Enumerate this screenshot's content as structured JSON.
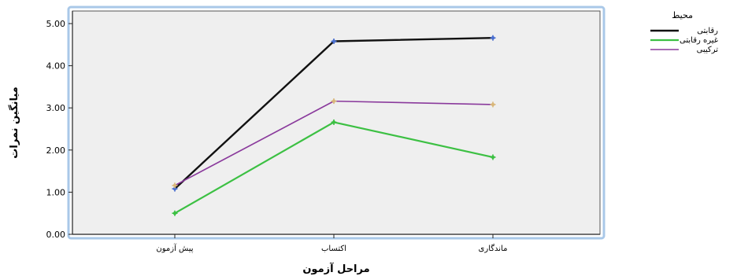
{
  "chart_data": {
    "type": "line",
    "title": "",
    "xlabel": "مراحل آزمون",
    "ylabel": "میانگین نمرات",
    "categories": [
      "پیش آزمون",
      "اکتساب",
      "ماندگاری"
    ],
    "ylim": [
      0,
      5
    ],
    "yticks": [
      "0.00",
      "1.00",
      "2.00",
      "3.00",
      "4.00",
      "5.00"
    ],
    "grid": false,
    "legend_title": "محیط",
    "legend_position": "right",
    "series": [
      {
        "name": "رقابتی",
        "values": [
          1.08,
          4.58,
          4.66
        ],
        "color": "#111111",
        "marker_color": "#4a6fd0",
        "width": 2.4
      },
      {
        "name": "غیره رقابتی",
        "values": [
          0.5,
          2.66,
          1.83
        ],
        "color": "#3cc043",
        "marker_color": "#3cc043",
        "width": 2.2
      },
      {
        "name": "ترکیبی",
        "values": [
          1.16,
          3.16,
          3.08
        ],
        "color": "#8a3a9c",
        "marker_color": "#d9b77a",
        "width": 1.6
      }
    ],
    "colors": {
      "plot_background": "#efefef",
      "frame_border": "#a9c8e8"
    }
  }
}
